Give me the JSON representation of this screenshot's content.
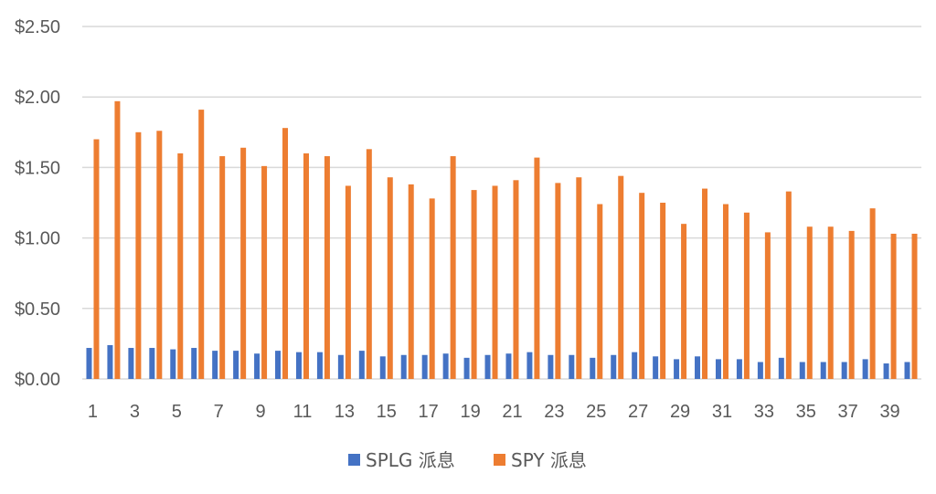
{
  "chart_data": {
    "type": "bar",
    "categories": [
      1,
      2,
      3,
      4,
      5,
      6,
      7,
      8,
      9,
      10,
      11,
      12,
      13,
      14,
      15,
      16,
      17,
      18,
      19,
      20,
      21,
      22,
      23,
      24,
      25,
      26,
      27,
      28,
      29,
      30,
      31,
      32,
      33,
      34,
      35,
      36,
      37,
      38,
      39,
      40
    ],
    "x_tick_labels": [
      "1",
      "3",
      "5",
      "7",
      "9",
      "11",
      "13",
      "15",
      "17",
      "19",
      "21",
      "23",
      "25",
      "27",
      "29",
      "31",
      "33",
      "35",
      "37",
      "39"
    ],
    "y_tick_labels": [
      "$0.00",
      "$0.50",
      "$1.00",
      "$1.50",
      "$2.00",
      "$2.50"
    ],
    "ylim": [
      0,
      2.5
    ],
    "y_ticks": [
      0,
      0.5,
      1.0,
      1.5,
      2.0,
      2.5
    ],
    "grid": true,
    "legend_position": "bottom",
    "series": [
      {
        "name": "SPLG 派息",
        "color": "#4472c4",
        "values": [
          0.22,
          0.24,
          0.22,
          0.22,
          0.21,
          0.22,
          0.2,
          0.2,
          0.18,
          0.2,
          0.19,
          0.19,
          0.17,
          0.2,
          0.16,
          0.17,
          0.17,
          0.18,
          0.15,
          0.17,
          0.18,
          0.19,
          0.17,
          0.17,
          0.15,
          0.17,
          0.19,
          0.16,
          0.14,
          0.16,
          0.14,
          0.14,
          0.12,
          0.15,
          0.12,
          0.12,
          0.12,
          0.14,
          0.11,
          0.12
        ]
      },
      {
        "name": "SPY 派息",
        "color": "#ed7d31",
        "values": [
          1.7,
          1.97,
          1.75,
          1.76,
          1.6,
          1.91,
          1.58,
          1.64,
          1.51,
          1.78,
          1.6,
          1.58,
          1.37,
          1.63,
          1.43,
          1.38,
          1.28,
          1.58,
          1.34,
          1.37,
          1.41,
          1.57,
          1.39,
          1.43,
          1.24,
          1.44,
          1.32,
          1.25,
          1.1,
          1.35,
          1.24,
          1.18,
          1.04,
          1.33,
          1.08,
          1.08,
          1.05,
          1.21,
          1.03,
          1.03
        ]
      }
    ]
  }
}
